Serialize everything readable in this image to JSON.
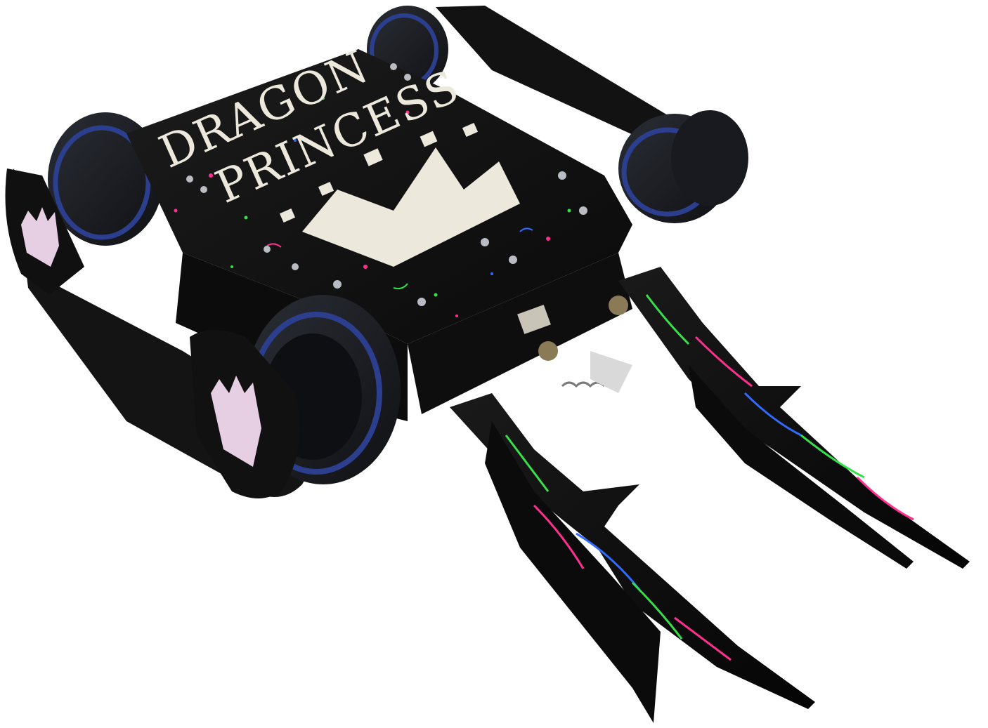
{
  "robot": {
    "name_line_1": "DRAGON",
    "name_line_2": "PRINCESS",
    "colors": {
      "background": "#ffffff",
      "body": "#141414",
      "tire": "#1f2229",
      "tire_rim": "#2c3f8f",
      "decal": "#ece8dc",
      "side_crown": "#e6cfe3",
      "splatter_pink": "#ff2f8f",
      "splatter_green": "#35e04a",
      "splatter_blue": "#2f6bff",
      "bolt": "#b9bcc2"
    },
    "icons": [
      "crown-icon",
      "crown-icon-left-front",
      "crown-icon-left-rear"
    ]
  }
}
